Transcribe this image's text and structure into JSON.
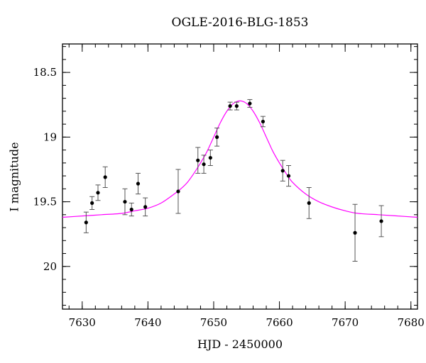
{
  "chart_data": {
    "type": "scatter",
    "title": "OGLE-2016-BLG-1853",
    "xlabel": "HJD - 2450000",
    "ylabel": "I magnitude",
    "xlim": [
      7627,
      7681
    ],
    "ylim": [
      18.28,
      20.33
    ],
    "y_inverted": true,
    "xticks": [
      7630,
      7640,
      7650,
      7660,
      7670,
      7680
    ],
    "xtick_labels": [
      "7630",
      "7640",
      "7650",
      "7660",
      "7670",
      "7680"
    ],
    "yticks": [
      18.5,
      19,
      19.5,
      20
    ],
    "ytick_labels": [
      "18.5",
      "19",
      "19.5",
      "20"
    ],
    "x_minor_step": 2,
    "y_minor_step": 0.1,
    "grid": false,
    "series": [
      {
        "type": "errorbar",
        "color": "#000000",
        "points": [
          {
            "x": 7630.6,
            "y": 19.66,
            "err": 0.08
          },
          {
            "x": 7631.5,
            "y": 19.51,
            "err": 0.05
          },
          {
            "x": 7632.4,
            "y": 19.43,
            "err": 0.06
          },
          {
            "x": 7633.5,
            "y": 19.31,
            "err": 0.08
          },
          {
            "x": 7636.5,
            "y": 19.5,
            "err": 0.1
          },
          {
            "x": 7637.5,
            "y": 19.56,
            "err": 0.05
          },
          {
            "x": 7638.5,
            "y": 19.36,
            "err": 0.08
          },
          {
            "x": 7639.6,
            "y": 19.54,
            "err": 0.07
          },
          {
            "x": 7644.6,
            "y": 19.42,
            "err": 0.17
          },
          {
            "x": 7647.6,
            "y": 19.18,
            "err": 0.1
          },
          {
            "x": 7648.5,
            "y": 19.21,
            "err": 0.07
          },
          {
            "x": 7649.5,
            "y": 19.16,
            "err": 0.06
          },
          {
            "x": 7650.5,
            "y": 19.0,
            "err": 0.07
          },
          {
            "x": 7652.5,
            "y": 18.76,
            "err": 0.03
          },
          {
            "x": 7653.5,
            "y": 18.76,
            "err": 0.03
          },
          {
            "x": 7655.5,
            "y": 18.74,
            "err": 0.03
          },
          {
            "x": 7657.5,
            "y": 18.88,
            "err": 0.04
          },
          {
            "x": 7660.5,
            "y": 19.26,
            "err": 0.08
          },
          {
            "x": 7661.4,
            "y": 19.3,
            "err": 0.08
          },
          {
            "x": 7664.5,
            "y": 19.51,
            "err": 0.12
          },
          {
            "x": 7671.5,
            "y": 19.74,
            "err": 0.22
          },
          {
            "x": 7675.5,
            "y": 19.65,
            "err": 0.12
          }
        ]
      },
      {
        "type": "line",
        "color": "#ff00ff",
        "x": [
          7627,
          7630,
          7633,
          7636,
          7638,
          7640,
          7642,
          7644,
          7645,
          7646,
          7647,
          7648,
          7649,
          7650,
          7651,
          7652,
          7653,
          7654,
          7655,
          7656,
          7657,
          7658,
          7659,
          7660,
          7661,
          7662,
          7664,
          7666,
          7668,
          7670,
          7672,
          7675,
          7678,
          7681
        ],
        "y": [
          19.62,
          19.61,
          19.6,
          19.59,
          19.57,
          19.55,
          19.51,
          19.44,
          19.4,
          19.35,
          19.28,
          19.2,
          19.11,
          19.0,
          18.89,
          18.8,
          18.74,
          18.72,
          18.74,
          18.8,
          18.89,
          19.0,
          19.11,
          19.2,
          19.28,
          19.35,
          19.44,
          19.5,
          19.54,
          19.57,
          19.59,
          19.6,
          19.61,
          19.62
        ]
      }
    ]
  }
}
